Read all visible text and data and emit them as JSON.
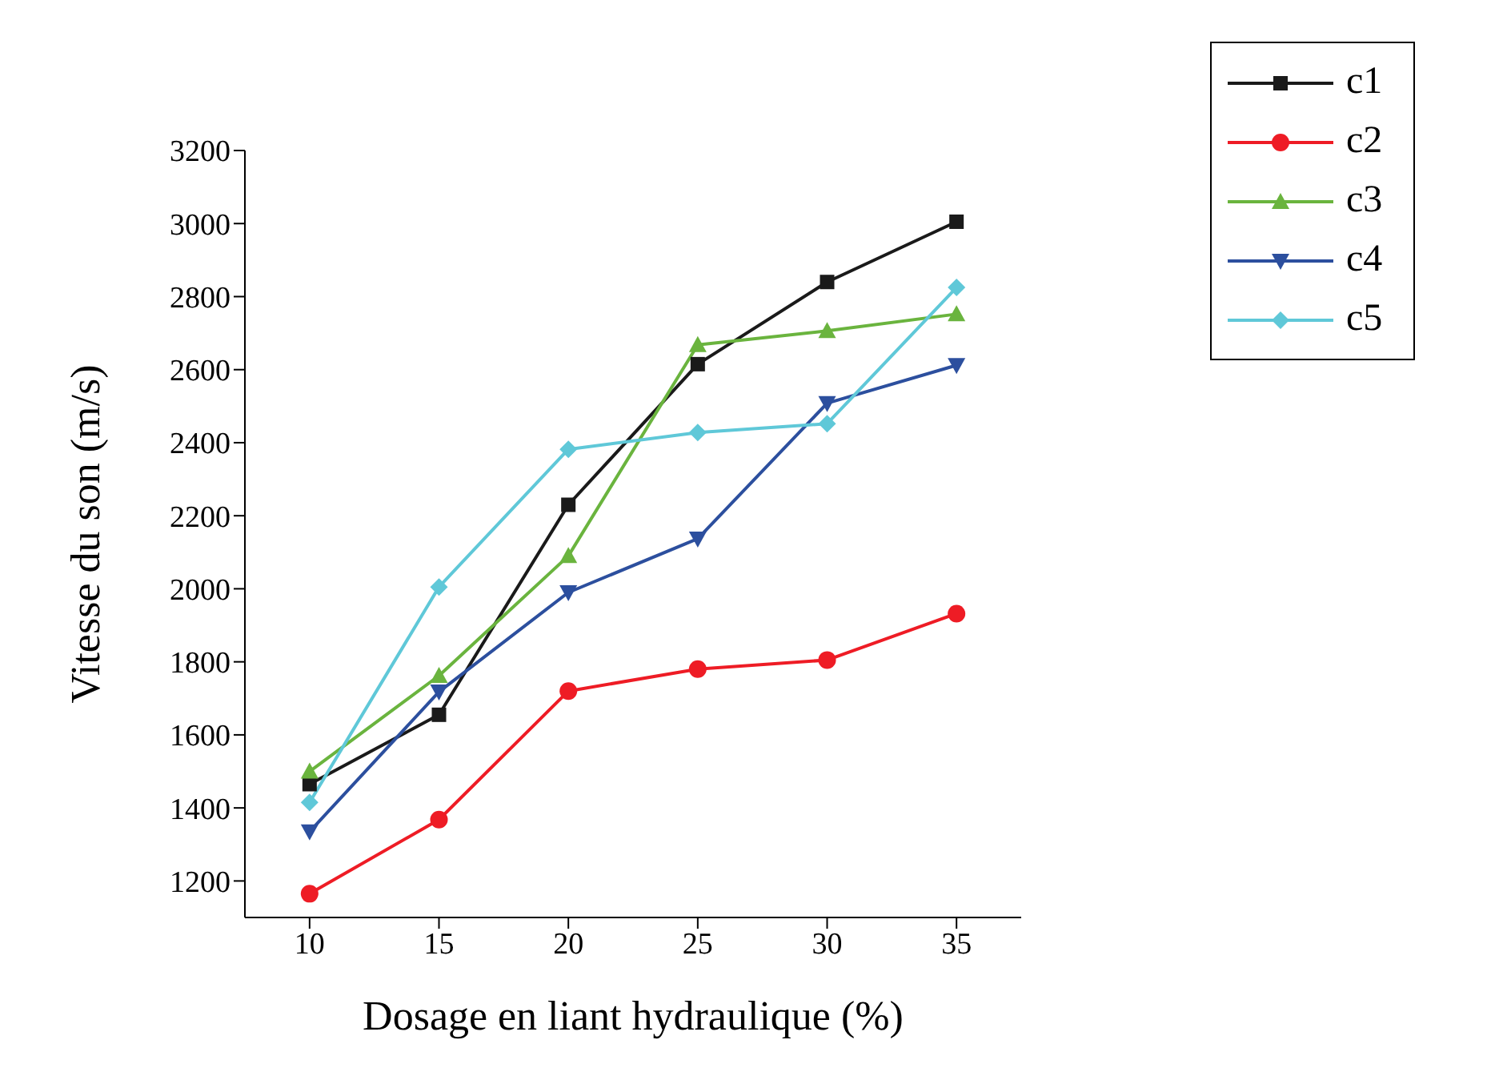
{
  "chart_data": {
    "type": "line",
    "xlabel": "Dosage en  liant hydraulique (%)",
    "ylabel": "Vitesse du son (m/s)",
    "x": [
      10,
      15,
      20,
      25,
      30,
      35
    ],
    "series": [
      {
        "name": "c1",
        "color": "#1a1a1a",
        "marker": "square",
        "values": [
          1465,
          1655,
          2230,
          2615,
          2840,
          3005
        ]
      },
      {
        "name": "c2",
        "color": "#ee1c25",
        "marker": "circle",
        "values": [
          1165,
          1368,
          1720,
          1780,
          1805,
          1932
        ]
      },
      {
        "name": "c3",
        "color": "#6ab43e",
        "marker": "triangle",
        "values": [
          1500,
          1762,
          2090,
          2668,
          2706,
          2752
        ]
      },
      {
        "name": "c4",
        "color": "#2c4f9e",
        "marker": "triangle-down",
        "values": [
          1335,
          1718,
          1990,
          2137,
          2508,
          2612
        ]
      },
      {
        "name": "c5",
        "color": "#5fc8d8",
        "marker": "diamond",
        "values": [
          1415,
          2005,
          2382,
          2428,
          2452,
          2825
        ]
      }
    ],
    "xlim": [
      7.5,
      37.5
    ],
    "xticks": [
      10,
      15,
      20,
      25,
      30,
      35
    ],
    "ylim": [
      1100,
      3200
    ],
    "yticks": [
      1200,
      1400,
      1600,
      1800,
      2000,
      2200,
      2400,
      2600,
      2800,
      3000,
      3200
    ],
    "grid": false,
    "legend": "top right",
    "line_style": "solid"
  }
}
